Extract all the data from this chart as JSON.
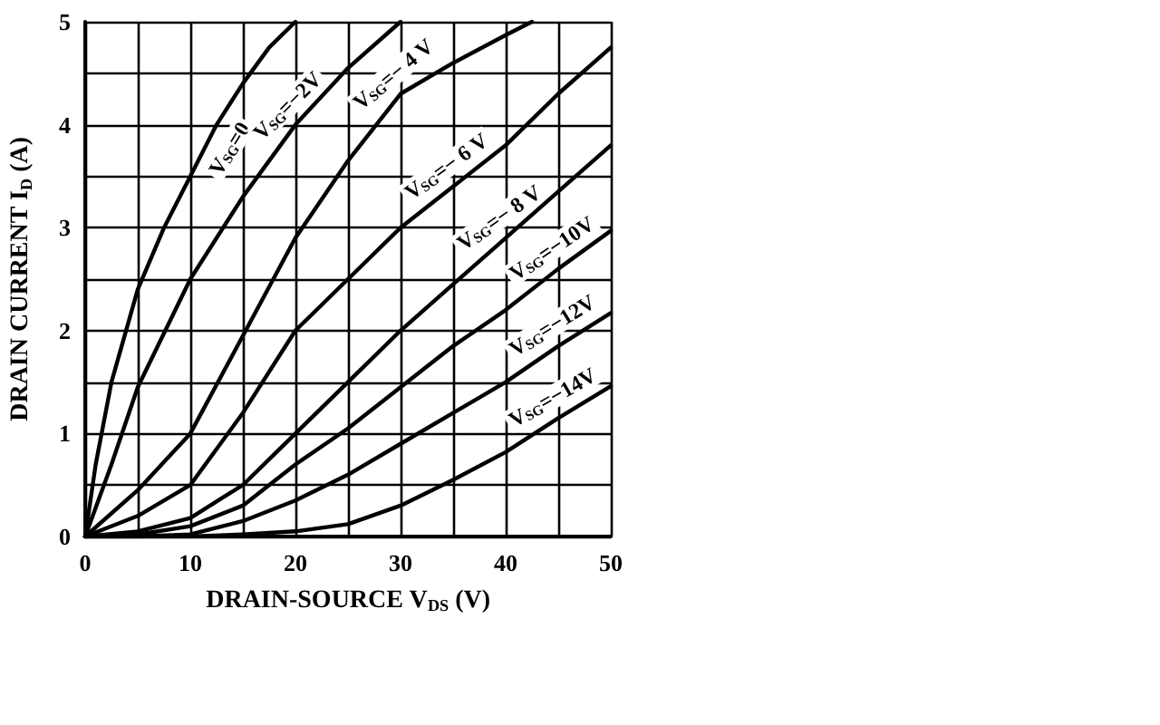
{
  "chart_data": {
    "type": "line",
    "xlabel": "DRAIN-SOURCE V$_{DS}$ (V)",
    "ylabel": "DRAIN CURRENT I$_{D}$ (A)",
    "xlim": [
      0,
      50
    ],
    "xticks": [
      0,
      10,
      20,
      30,
      40,
      50
    ],
    "ylim": [
      0,
      5
    ],
    "yticks": [
      0,
      1,
      2,
      3,
      4,
      5
    ],
    "grid": true,
    "marker": "none",
    "line_style": "solid",
    "legend": false,
    "series": [
      {
        "name": "V$_{SG}$=0",
        "color": "#000000",
        "x": [
          0,
          1,
          2.5,
          5,
          7.5,
          10,
          12.5,
          15,
          17.5,
          20
        ],
        "values": [
          0,
          0.7,
          1.5,
          2.4,
          3.0,
          3.5,
          4.0,
          4.4,
          4.75,
          5
        ]
      },
      {
        "name": "V$_{SG}$=−2V",
        "color": "#000000",
        "x": [
          0,
          2.5,
          5,
          10,
          15,
          20,
          25,
          30
        ],
        "values": [
          0,
          0.7,
          1.45,
          2.5,
          3.3,
          4.0,
          4.55,
          5
        ]
      },
      {
        "name": "V$_{SG}$=− 4 V",
        "color": "#000000",
        "x": [
          0,
          5,
          10,
          15,
          20,
          25,
          30,
          35,
          40,
          42.5
        ],
        "values": [
          0,
          0.45,
          1.0,
          1.95,
          2.9,
          3.65,
          4.3,
          4.6,
          4.87,
          5
        ]
      },
      {
        "name": "V$_{SG}$=− 6 V",
        "color": "#000000",
        "x": [
          0,
          5,
          10,
          15,
          20,
          25,
          30,
          35,
          40,
          45,
          50
        ],
        "values": [
          0,
          0.2,
          0.5,
          1.2,
          2.0,
          2.5,
          3.0,
          3.4,
          3.8,
          4.3,
          4.75
        ]
      },
      {
        "name": "V$_{SG}$=− 8 V",
        "color": "#000000",
        "x": [
          0,
          5,
          10,
          15,
          20,
          25,
          30,
          35,
          40,
          45,
          50
        ],
        "values": [
          0,
          0.05,
          0.18,
          0.5,
          1.0,
          1.5,
          2.0,
          2.45,
          2.9,
          3.35,
          3.8
        ]
      },
      {
        "name": "V$_{SG}$=−10V",
        "color": "#000000",
        "x": [
          0,
          5,
          10,
          15,
          20,
          25,
          30,
          35,
          40,
          45,
          50
        ],
        "values": [
          0,
          0.02,
          0.1,
          0.3,
          0.7,
          1.05,
          1.45,
          1.85,
          2.2,
          2.6,
          2.97
        ]
      },
      {
        "name": "V$_{SG}$=−12V",
        "color": "#000000",
        "x": [
          0,
          5,
          10,
          15,
          20,
          25,
          30,
          35,
          40,
          45,
          50
        ],
        "values": [
          0,
          0,
          0.02,
          0.15,
          0.35,
          0.6,
          0.9,
          1.2,
          1.5,
          1.85,
          2.17
        ]
      },
      {
        "name": "V$_{SG}$=−14V",
        "color": "#000000",
        "x": [
          0,
          10,
          15,
          20,
          25,
          30,
          35,
          40,
          45,
          50
        ],
        "values": [
          0,
          0,
          0.02,
          0.05,
          0.12,
          0.3,
          0.55,
          0.82,
          1.15,
          1.46
        ]
      }
    ]
  }
}
